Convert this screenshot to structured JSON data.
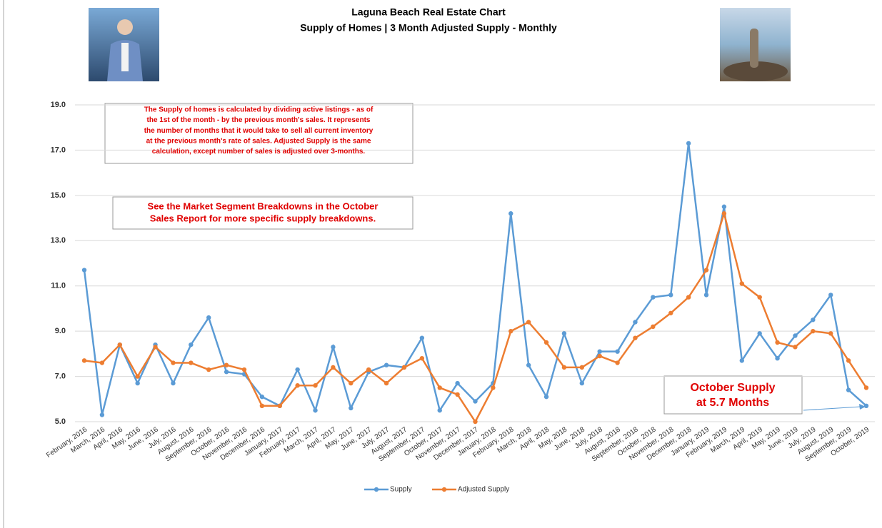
{
  "chart_data": {
    "type": "line",
    "title": "Laguna Beach Real Estate Chart",
    "subtitle": "Supply of Homes | 3 Month Adjusted Supply - Monthly",
    "categories": [
      "February, 2016",
      "March, 2016",
      "April, 2016",
      "May, 2016",
      "June, 2016",
      "July, 2016",
      "August, 2016",
      "September, 2016",
      "October, 2016",
      "November, 2016",
      "December, 2016",
      "January, 2017",
      "February, 2017",
      "March, 2017",
      "April, 2017",
      "May, 2017",
      "June, 2017",
      "July, 2017",
      "August, 2017",
      "September, 2017",
      "October, 2017",
      "November, 2017",
      "December, 2017",
      "January, 2018",
      "February, 2018",
      "March, 2018",
      "April, 2018",
      "May, 2018",
      "June, 2018",
      "July, 2018",
      "August, 2018",
      "September, 2018",
      "October, 2018",
      "November, 2018",
      "December, 2018",
      "January, 2019",
      "February, 2019",
      "March, 2019",
      "April, 2019",
      "May, 2019",
      "June, 2019",
      "July, 2019",
      "August, 2019",
      "September, 2019",
      "October, 2019"
    ],
    "series": [
      {
        "name": "Supply",
        "color": "#5b9bd5",
        "values": [
          11.7,
          5.3,
          8.4,
          6.7,
          8.4,
          6.7,
          8.4,
          9.6,
          7.2,
          7.1,
          6.1,
          5.7,
          7.3,
          5.5,
          8.3,
          5.6,
          7.2,
          7.5,
          7.4,
          8.7,
          5.5,
          6.7,
          5.9,
          6.7,
          14.2,
          7.5,
          6.1,
          8.9,
          6.7,
          8.1,
          8.1,
          9.4,
          10.5,
          10.6,
          17.3,
          10.6,
          14.5,
          7.7,
          8.9,
          7.8,
          8.8,
          9.5,
          10.6,
          6.4,
          5.7
        ]
      },
      {
        "name": "Adjusted Supply",
        "color": "#ed7d31",
        "values": [
          7.7,
          7.6,
          8.4,
          7.0,
          8.3,
          7.6,
          7.6,
          7.3,
          7.5,
          7.3,
          5.7,
          5.7,
          6.6,
          6.6,
          7.4,
          6.7,
          7.3,
          6.7,
          7.4,
          7.8,
          6.5,
          6.2,
          5.0,
          6.5,
          9.0,
          9.4,
          8.5,
          7.4,
          7.4,
          7.9,
          7.6,
          8.7,
          9.2,
          9.8,
          10.5,
          11.7,
          14.2,
          11.1,
          10.5,
          8.5,
          8.3,
          9.0,
          8.9,
          7.7,
          6.5
        ]
      }
    ],
    "ylim": [
      5,
      19
    ],
    "yticks": [
      {
        "value": 5,
        "label": "5.0"
      },
      {
        "value": 7,
        "label": "7.0"
      },
      {
        "value": 9,
        "label": "9.0"
      },
      {
        "value": 11,
        "label": "11.0"
      },
      {
        "value": 13,
        "label": "13.0"
      },
      {
        "value": 15,
        "label": "15.0"
      },
      {
        "value": 17,
        "label": "17.0"
      },
      {
        "value": 19,
        "label": "19.0"
      }
    ],
    "grid": true,
    "legend": "bottom",
    "annotations": [
      {
        "lines": [
          "The Supply of homes is calculated by dividing active listings - as of",
          "the 1st of the month - by the previous month's sales.  It represents",
          "the number of months that it would take to sell all current inventory",
          "at the previous month's rate of sales.  Adjusted Supply is the same",
          "calculation, except number of sales is adjusted over 3-months."
        ]
      },
      {
        "lines": [
          "See the Market Segment Breakdowns in the October",
          "Sales Report for more specific supply breakdowns."
        ]
      },
      {
        "lines": [
          "October Supply",
          "at 5.7 Months"
        ]
      }
    ]
  }
}
